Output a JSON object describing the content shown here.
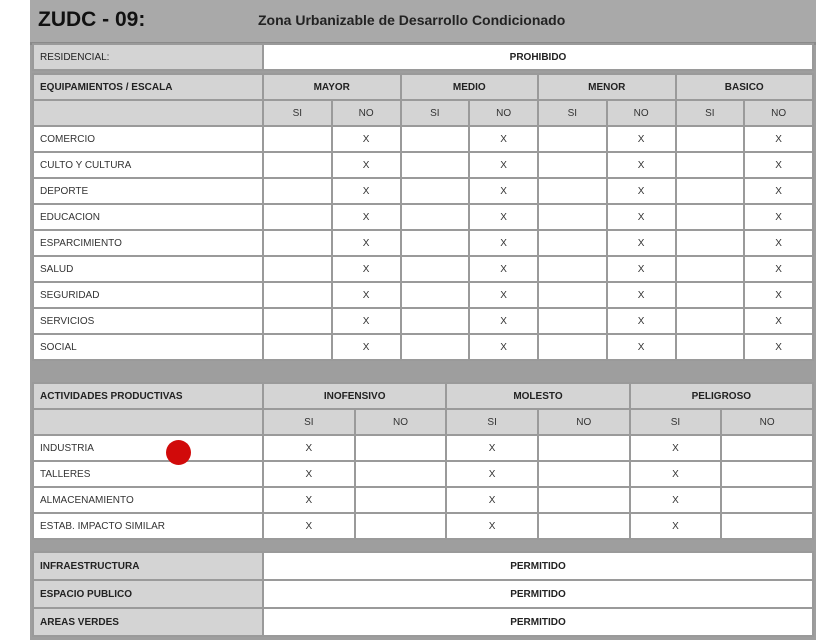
{
  "title": {
    "code": "ZUDC - 09:",
    "name": "Zona Urbanizable de Desarrollo Condicionado"
  },
  "residencial": {
    "label": "RESIDENCIAL:",
    "value": "PROHIBIDO"
  },
  "equipamientos": {
    "label": "EQUIPAMIENTOS / ESCALA",
    "scales": [
      "MAYOR",
      "MEDIO",
      "MENOR",
      "BASICO"
    ],
    "si": "SI",
    "no": "NO",
    "mark": "X",
    "rows": [
      {
        "label": "COMERCIO",
        "marks": [
          "",
          "X",
          "",
          "X",
          "",
          "X",
          "",
          "X"
        ]
      },
      {
        "label": "CULTO Y CULTURA",
        "marks": [
          "",
          "X",
          "",
          "X",
          "",
          "X",
          "",
          "X"
        ]
      },
      {
        "label": "DEPORTE",
        "marks": [
          "",
          "X",
          "",
          "X",
          "",
          "X",
          "",
          "X"
        ]
      },
      {
        "label": "EDUCACION",
        "marks": [
          "",
          "X",
          "",
          "X",
          "",
          "X",
          "",
          "X"
        ]
      },
      {
        "label": "ESPARCIMIENTO",
        "marks": [
          "",
          "X",
          "",
          "X",
          "",
          "X",
          "",
          "X"
        ]
      },
      {
        "label": "SALUD",
        "marks": [
          "",
          "X",
          "",
          "X",
          "",
          "X",
          "",
          "X"
        ]
      },
      {
        "label": "SEGURIDAD",
        "marks": [
          "",
          "X",
          "",
          "X",
          "",
          "X",
          "",
          "X"
        ]
      },
      {
        "label": "SERVICIOS",
        "marks": [
          "",
          "X",
          "",
          "X",
          "",
          "X",
          "",
          "X"
        ]
      },
      {
        "label": "SOCIAL",
        "marks": [
          "",
          "X",
          "",
          "X",
          "",
          "X",
          "",
          "X"
        ]
      }
    ]
  },
  "productivas": {
    "label": "ACTIVIDADES PRODUCTIVAS",
    "levels": [
      "INOFENSIVO",
      "MOLESTO",
      "PELIGROSO"
    ],
    "si": "SI",
    "no": "NO",
    "rows": [
      {
        "label": "INDUSTRIA",
        "marks": [
          "X",
          "",
          "X",
          "",
          "X",
          ""
        ]
      },
      {
        "label": "TALLERES",
        "marks": [
          "X",
          "",
          "X",
          "",
          "X",
          ""
        ]
      },
      {
        "label": "ALMACENAMIENTO",
        "marks": [
          "X",
          "",
          "X",
          "",
          "X",
          ""
        ]
      },
      {
        "label": "ESTAB. IMPACTO SIMILAR",
        "marks": [
          "X",
          "",
          "X",
          "",
          "X",
          ""
        ]
      }
    ]
  },
  "otros": [
    {
      "label": "INFRAESTRUCTURA",
      "value": "PERMITIDO"
    },
    {
      "label": "ESPACIO PUBLICO",
      "value": "PERMITIDO"
    },
    {
      "label": "AREAS VERDES",
      "value": "PERMITIDO"
    }
  ],
  "cursor_color": "#d10a0a"
}
